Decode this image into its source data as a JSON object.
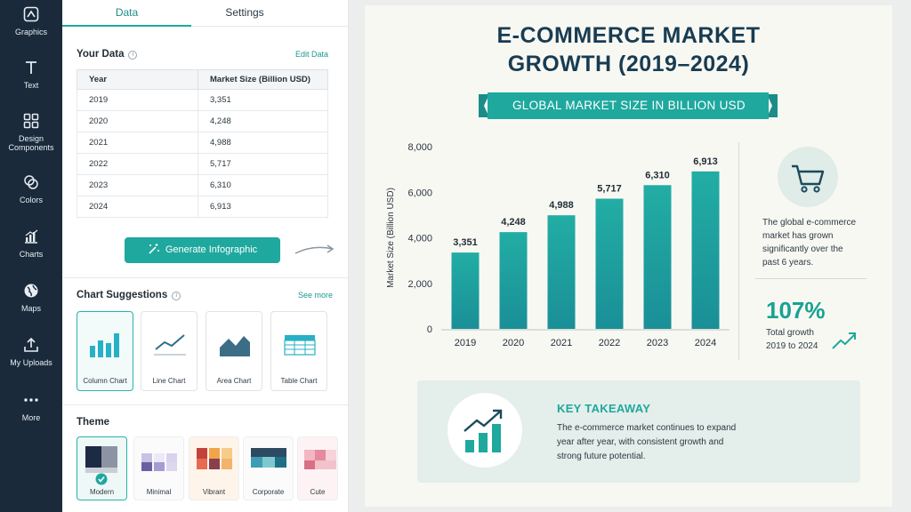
{
  "rail": {
    "items": [
      {
        "label": "Graphics",
        "icon": "graphics-icon"
      },
      {
        "label": "Text",
        "icon": "text-icon"
      },
      {
        "label": "Design Components",
        "icon": "design-components-icon"
      },
      {
        "label": "Colors",
        "icon": "colors-icon"
      },
      {
        "label": "Charts",
        "icon": "charts-icon"
      },
      {
        "label": "Maps",
        "icon": "maps-icon"
      },
      {
        "label": "My Uploads",
        "icon": "upload-icon"
      },
      {
        "label": "More",
        "icon": "more-icon"
      }
    ]
  },
  "panel": {
    "tabs": {
      "data": "Data",
      "settings": "Settings"
    },
    "your_data": {
      "title": "Your Data",
      "edit_link": "Edit Data",
      "columns": [
        "Year",
        "Market Size (Billion USD)"
      ],
      "rows": [
        [
          "2019",
          "3,351"
        ],
        [
          "2020",
          "4,248"
        ],
        [
          "2021",
          "4,988"
        ],
        [
          "2022",
          "5,717"
        ],
        [
          "2023",
          "6,310"
        ],
        [
          "2024",
          "6,913"
        ]
      ]
    },
    "generate_button": "Generate Infographic",
    "chart_suggestions": {
      "title": "Chart Suggestions",
      "see_more": "See more",
      "cards": [
        "Column Chart",
        "Line Chart",
        "Area Chart",
        "Table Chart"
      ]
    },
    "theme": {
      "title": "Theme",
      "options": [
        "Modern",
        "Minimal",
        "Vibrant",
        "Corporate",
        "Cute"
      ],
      "selected": "Modern"
    }
  },
  "infographic": {
    "title_line1": "E-COMMERCE MARKET",
    "title_line2": "GROWTH (2019–2024)",
    "subtitle": "GLOBAL MARKET SIZE IN BILLION USD",
    "side_text": "The global e-commerce market has grown significantly over the past 6 years.",
    "growth_value": "107%",
    "growth_caption": "Total growth 2019 to 2024",
    "takeaway_title": "KEY TAKEAWAY",
    "takeaway_text": "The e-commerce market continues to expand year after year, with consistent growth and strong future potential.",
    "accent_color": "#1fa89e",
    "title_color": "#183c52"
  },
  "chart_data": {
    "type": "bar",
    "categories": [
      "2019",
      "2020",
      "2021",
      "2022",
      "2023",
      "2024"
    ],
    "values": [
      3351,
      4248,
      4988,
      5717,
      6310,
      6913
    ],
    "value_labels": [
      "3,351",
      "4,248",
      "4,988",
      "5,717",
      "6,310",
      "6,913"
    ],
    "ylabel": "Market Size (Billion USD)",
    "ylim": [
      0,
      8000
    ],
    "yticks": [
      "0",
      "2,000",
      "4,000",
      "6,000",
      "8,000"
    ],
    "grid": false,
    "bar_color": "#1fa89e"
  }
}
